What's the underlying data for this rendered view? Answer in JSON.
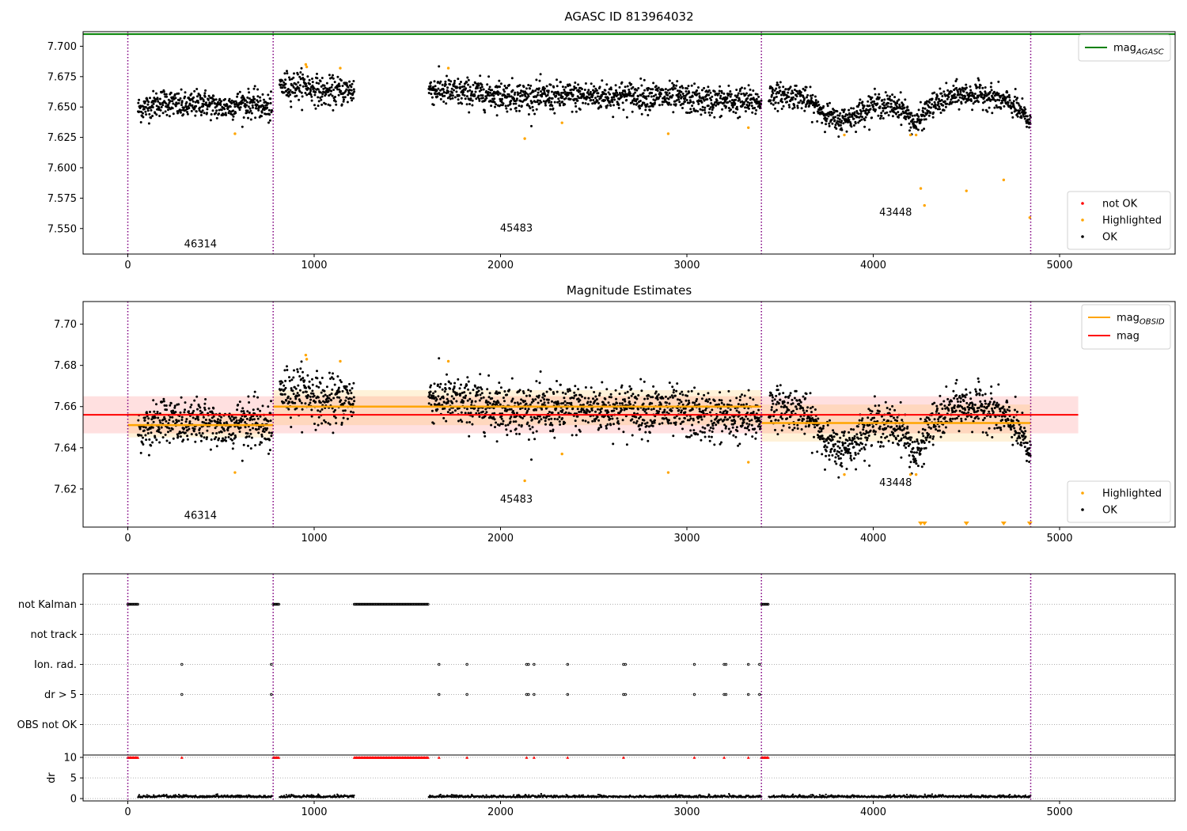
{
  "chart_data": [
    {
      "type": "scatter",
      "title": "AGASC ID 813964032",
      "xlim": [
        -240,
        5620
      ],
      "ylim": [
        7.529,
        7.712
      ],
      "x_ticks": [
        0,
        1000,
        2000,
        3000,
        4000,
        5000
      ],
      "y_ticks": [
        7.7,
        7.675,
        7.65,
        7.625,
        7.6,
        7.575,
        7.55
      ],
      "y_tick_labels": [
        "7.700",
        "7.675",
        "7.650",
        "7.625",
        "7.600",
        "7.575",
        "7.550"
      ],
      "legend_top": [
        {
          "name": "mag",
          "sub": "AGASC",
          "color": "#008000"
        }
      ],
      "legend_bottom": [
        {
          "name": "not OK",
          "color": "#ff0000"
        },
        {
          "name": "Highlighted",
          "color": "#ffa500"
        },
        {
          "name": "OK",
          "color": "#000000"
        }
      ],
      "agasc_mag": 7.71,
      "obsid_boundaries": [
        0,
        780,
        3400,
        4845
      ],
      "obsid_labels": [
        {
          "label": "46314",
          "x": 390,
          "y": 7.5345
        },
        {
          "label": "45483",
          "x": 2085,
          "y": 7.5475
        },
        {
          "label": "43448",
          "x": 4120,
          "y": 7.5605
        }
      ],
      "ok_segments": [
        {
          "x": [
            55,
            775
          ],
          "profile": [
            [
              55,
              7.648
            ],
            [
              200,
              7.655
            ],
            [
              300,
              7.65
            ],
            [
              400,
              7.654
            ],
            [
              500,
              7.649
            ],
            [
              600,
              7.653
            ],
            [
              700,
              7.652
            ],
            [
              775,
              7.647
            ]
          ],
          "sd": 0.0055
        },
        {
          "x": [
            815,
            1215
          ],
          "profile": [
            [
              815,
              7.667
            ],
            [
              950,
              7.668
            ],
            [
              1050,
              7.662
            ],
            [
              1215,
              7.664
            ]
          ],
          "sd": 0.006
        },
        {
          "x": [
            1615,
            3400
          ],
          "profile": [
            [
              1615,
              7.665
            ],
            [
              1750,
              7.662
            ],
            [
              1900,
              7.661
            ],
            [
              2200,
              7.658
            ],
            [
              2500,
              7.659
            ],
            [
              2800,
              7.659
            ],
            [
              3100,
              7.655
            ],
            [
              3400,
              7.654
            ]
          ],
          "sd": 0.006
        },
        {
          "x": [
            3440,
            4845
          ],
          "profile": [
            [
              3440,
              7.66
            ],
            [
              3600,
              7.659
            ],
            [
              3700,
              7.65
            ],
            [
              3800,
              7.638
            ],
            [
              3900,
              7.643
            ],
            [
              4000,
              7.652
            ],
            [
              4150,
              7.65
            ],
            [
              4230,
              7.635
            ],
            [
              4300,
              7.65
            ],
            [
              4450,
              7.66
            ],
            [
              4600,
              7.66
            ],
            [
              4750,
              7.652
            ],
            [
              4845,
              7.637
            ]
          ],
          "sd": 0.005
        }
      ],
      "highlighted": [
        [
          575,
          7.628
        ],
        [
          955,
          7.685
        ],
        [
          960,
          7.683
        ],
        [
          1140,
          7.682
        ],
        [
          1720,
          7.682
        ],
        [
          2130,
          7.624
        ],
        [
          2330,
          7.637
        ],
        [
          2900,
          7.628
        ],
        [
          3330,
          7.633
        ],
        [
          3845,
          7.627
        ],
        [
          4200,
          7.627
        ],
        [
          4230,
          7.627
        ],
        [
          4255,
          7.583
        ],
        [
          4275,
          7.569
        ],
        [
          4500,
          7.581
        ],
        [
          4700,
          7.59
        ],
        [
          4840,
          7.559
        ]
      ]
    },
    {
      "type": "scatter",
      "title": "Magnitude Estimates",
      "xlim": [
        -240,
        5620
      ],
      "ylim": [
        7.6015,
        7.711
      ],
      "x_ticks": [
        0,
        1000,
        2000,
        3000,
        4000,
        5000
      ],
      "y_ticks": [
        7.7,
        7.68,
        7.66,
        7.64,
        7.62
      ],
      "y_tick_labels": [
        "7.70",
        "7.68",
        "7.66",
        "7.64",
        "7.62"
      ],
      "legend_top": [
        {
          "name": "mag",
          "sub": "OBSID",
          "color": "#ffa500"
        },
        {
          "name": "mag",
          "sub": "",
          "color": "#ff0000"
        }
      ],
      "legend_bottom": [
        {
          "name": "Highlighted",
          "color": "#ffa500"
        },
        {
          "name": "OK",
          "color": "#000000"
        }
      ],
      "mag": 7.656,
      "mag_band": [
        7.647,
        7.665
      ],
      "mag_xrange": [
        -240,
        5100
      ],
      "obsid_mags": [
        {
          "x": [
            0,
            780
          ],
          "value": 7.651,
          "band": [
            7.645,
            7.657
          ]
        },
        {
          "x": [
            780,
            3400
          ],
          "value": 7.66,
          "band": [
            7.651,
            7.668
          ]
        },
        {
          "x": [
            3400,
            4845
          ],
          "value": 7.652,
          "band": [
            7.643,
            7.661
          ]
        }
      ],
      "obsid_boundaries": [
        0,
        780,
        3400,
        4845
      ],
      "obsid_labels": [
        {
          "label": "46314",
          "x": 390,
          "y": 7.6055
        },
        {
          "label": "45483",
          "x": 2085,
          "y": 7.6135
        },
        {
          "label": "43448",
          "x": 4120,
          "y": 7.6215
        }
      ],
      "limit_markers_x": [
        4255,
        4275,
        4500,
        4700,
        4840
      ]
    },
    {
      "type": "scatter",
      "xlim": [
        -240,
        5620
      ],
      "x_ticks": [
        0,
        1000,
        2000,
        3000,
        4000,
        5000
      ],
      "flag_rows": [
        "not Kalman",
        "not track",
        "Ion. rad.",
        "dr > 5",
        "OBS not OK"
      ],
      "flags": {
        "not Kalman": [
          [
            0,
            55
          ],
          [
            780,
            815
          ],
          [
            1215,
            1615
          ],
          [
            3400,
            3440
          ]
        ],
        "not track": [],
        "Ion. rad.": [
          290,
          770,
          1670,
          1820,
          2140,
          2150,
          2180,
          2360,
          2660,
          2670,
          3040,
          3200,
          3210,
          3330,
          3390
        ],
        "dr > 5": [
          290,
          770,
          1670,
          1820,
          2140,
          2150,
          2180,
          2360,
          2660,
          2670,
          3040,
          3200,
          3210,
          3330,
          3390
        ],
        "OBS not OK": []
      },
      "dr_ylabel": "dr",
      "dr_ylim": [
        -0.3,
        10.5
      ],
      "dr_ticks": [
        10,
        5,
        0
      ],
      "dr_clipped_x": [
        [
          0,
          55
        ],
        [
          780,
          815
        ],
        [
          1215,
          1615
        ],
        [
          3400,
          3440
        ],
        290,
        1670,
        1820,
        2140,
        2180,
        2360,
        2660,
        3040,
        3200,
        3330
      ]
    }
  ]
}
